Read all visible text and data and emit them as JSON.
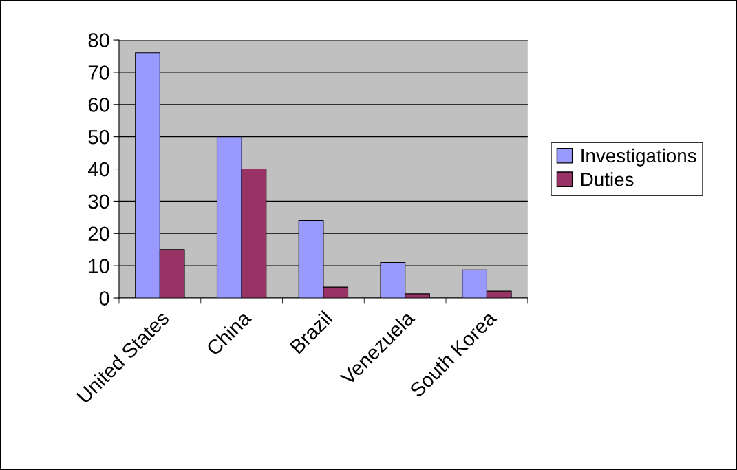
{
  "chart_data": {
    "type": "bar",
    "categories": [
      "United States",
      "China",
      "Brazil",
      "Venezuela",
      "South Korea"
    ],
    "series": [
      {
        "name": "Investigations",
        "color": "#9999ff",
        "values": [
          76,
          50,
          24,
          11,
          8.7
        ]
      },
      {
        "name": "Duties",
        "color": "#993366",
        "values": [
          15,
          40,
          3.4,
          1.3,
          2.1
        ]
      }
    ],
    "ylim": [
      0,
      80
    ],
    "yticks": [
      0,
      10,
      20,
      30,
      40,
      50,
      60,
      70,
      80
    ],
    "grid": "y",
    "legend": "right"
  }
}
